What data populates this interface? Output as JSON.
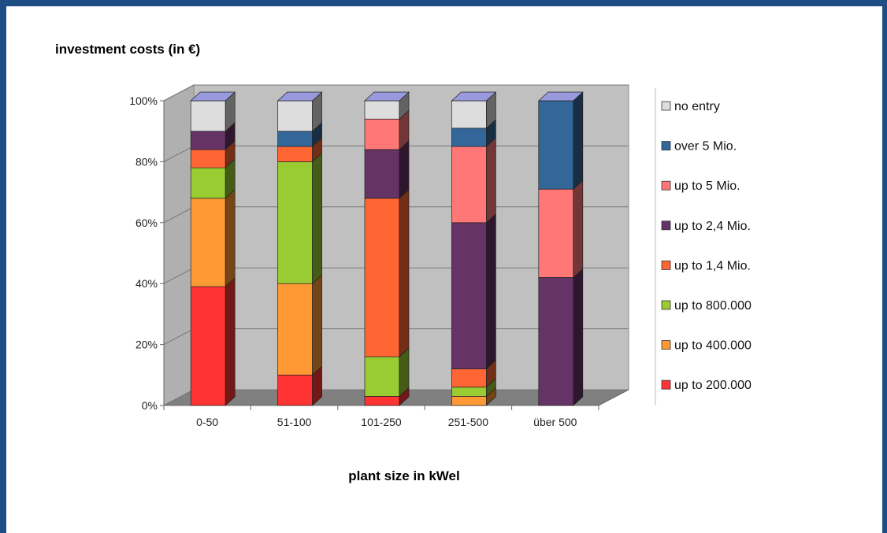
{
  "chart_data": {
    "type": "bar",
    "stacked": true,
    "three_d": true,
    "title": "investment costs (in €)",
    "xlabel": "plant size in kWel",
    "ylabel": "",
    "categories": [
      "0-50",
      "51-100",
      "101-250",
      "251-500",
      "über 500"
    ],
    "y_ticks": [
      "0%",
      "20%",
      "40%",
      "60%",
      "80%",
      "100%"
    ],
    "ylim": [
      0,
      100
    ],
    "grid": true,
    "legend_position": "right",
    "series": [
      {
        "name": "up to 200.000",
        "color": "#ff3333",
        "values": [
          39,
          10,
          3,
          0,
          0
        ]
      },
      {
        "name": "up to 400.000",
        "color": "#ff9933",
        "values": [
          29,
          30,
          0,
          3,
          0
        ]
      },
      {
        "name": "up to 800.000",
        "color": "#99cc33",
        "values": [
          10,
          40,
          13,
          3,
          0
        ]
      },
      {
        "name": "up to 1,4 Mio.",
        "color": "#ff6633",
        "values": [
          6,
          5,
          52,
          6,
          0
        ]
      },
      {
        "name": "up to 2,4 Mio.",
        "color": "#663366",
        "values": [
          6,
          0,
          16,
          48,
          42
        ]
      },
      {
        "name": "up to 5 Mio.",
        "color": "#ff7777",
        "values": [
          0,
          0,
          10,
          25,
          29
        ]
      },
      {
        "name": "over 5 Mio.",
        "color": "#336699",
        "values": [
          0,
          5,
          0,
          6,
          29
        ]
      },
      {
        "name": "no entry",
        "color": "#dddddd",
        "values": [
          10,
          10,
          6,
          9,
          0
        ]
      }
    ]
  }
}
